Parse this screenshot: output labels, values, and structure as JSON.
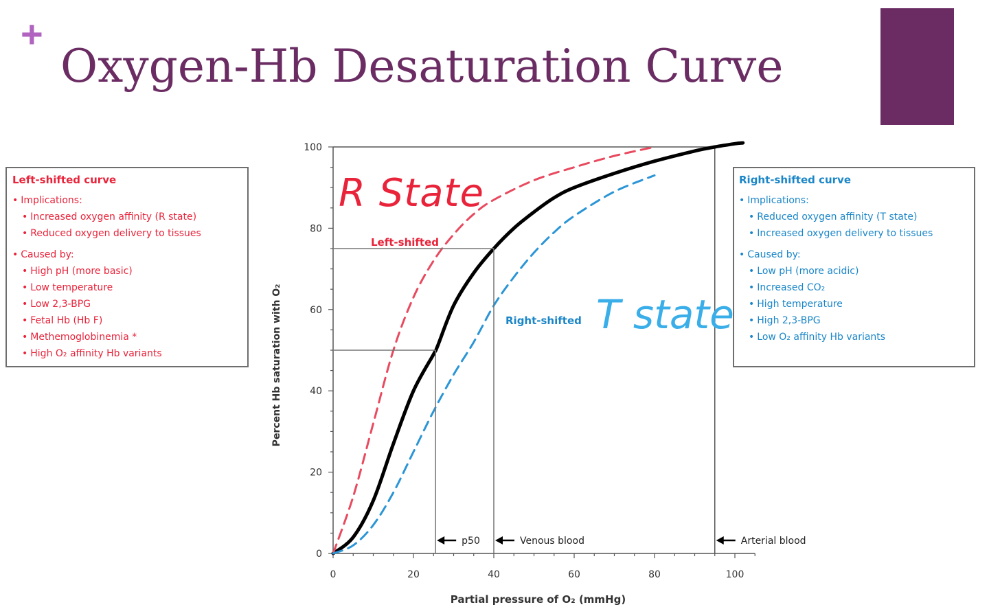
{
  "slide": {
    "plus": "+",
    "title": "Oxygen-Hb Desaturation Curve",
    "accent_color": "#6a2c63",
    "plus_color": "#b064c0"
  },
  "left_box": {
    "title": "Left-shifted curve",
    "color": "#e8233a",
    "items": [
      {
        "text": "Implications:",
        "level": 0
      },
      {
        "text": "Increased oxygen affinity (R state)",
        "level": 1
      },
      {
        "text": "Reduced oxygen delivery to tissues",
        "level": 1
      },
      {
        "text": "Caused by:",
        "level": 0
      },
      {
        "text": "High pH (more basic)",
        "level": 1
      },
      {
        "text": "Low temperature",
        "level": 1
      },
      {
        "text": "Low 2,3-BPG",
        "level": 1
      },
      {
        "text": "Fetal Hb (Hb F)",
        "level": 1
      },
      {
        "text": "Methemoglobinemia *",
        "level": 1
      },
      {
        "text": "High O₂ affinity Hb variants",
        "level": 1
      }
    ]
  },
  "right_box": {
    "title": "Right-shifted curve",
    "color": "#1a86c8",
    "items": [
      {
        "text": "Implications:",
        "level": 0
      },
      {
        "text": "Reduced oxygen affinity (T state)",
        "level": 1
      },
      {
        "text": "Increased oxygen delivery to tissues",
        "level": 1
      },
      {
        "text": "Caused by:",
        "level": 0
      },
      {
        "text": "Low pH (more acidic)",
        "level": 1
      },
      {
        "text": "Increased CO₂",
        "level": 1
      },
      {
        "text": "High temperature",
        "level": 1
      },
      {
        "text": "High 2,3-BPG",
        "level": 1
      },
      {
        "text": "Low O₂ affinity Hb variants",
        "level": 1
      }
    ]
  },
  "chart_data": {
    "type": "line",
    "xlabel": "Partial pressure of O₂ (mmHg)",
    "ylabel": "Percent Hb saturation with O₂",
    "xlim": [
      0,
      105
    ],
    "ylim": [
      0,
      100
    ],
    "xticks": [
      0,
      20,
      40,
      60,
      80,
      100
    ],
    "yticks": [
      0,
      20,
      40,
      60,
      80,
      100
    ],
    "grid": false,
    "series": [
      {
        "key": "normal",
        "color": "#000000",
        "style": "solid",
        "x": [
          0,
          5,
          10,
          15,
          20,
          25,
          26,
          30,
          35,
          40,
          45,
          50,
          55,
          60,
          70,
          80,
          90,
          95,
          100,
          102
        ],
        "y": [
          0,
          4,
          13,
          27,
          40,
          49,
          51,
          61,
          69,
          75,
          80,
          84,
          87.5,
          90,
          93.5,
          96.5,
          99,
          100,
          100.8,
          101
        ]
      },
      {
        "key": "left",
        "color": "#e84a5f",
        "style": "dashed",
        "x": [
          0,
          5,
          10,
          15,
          20,
          25,
          30,
          35,
          40,
          50,
          60,
          70,
          80
        ],
        "y": [
          0,
          14,
          32,
          50,
          63,
          72,
          78.5,
          83.5,
          87,
          91.8,
          95,
          97.8,
          100
        ]
      },
      {
        "key": "right",
        "color": "#2b95d6",
        "style": "dashed",
        "x": [
          0,
          5,
          10,
          15,
          20,
          25,
          30,
          35,
          40,
          45,
          50,
          55,
          60,
          70,
          80
        ],
        "y": [
          0,
          2,
          7,
          15,
          25,
          35,
          44,
          52,
          61,
          68,
          74,
          79,
          83,
          89,
          93
        ]
      }
    ],
    "series_labels": [
      {
        "text": "Left-shifted",
        "color": "#e8233a"
      },
      {
        "text": "Right-shifted",
        "color": "#1a86c8"
      }
    ],
    "reference_lines": [
      {
        "x": 25.5,
        "y": 50
      },
      {
        "x": 40,
        "y": 75
      }
    ],
    "arterial_x": 95,
    "markers": [
      {
        "x": 25.5,
        "label": "p50"
      },
      {
        "x": 40,
        "label": "Venous blood"
      },
      {
        "x": 95,
        "label": "Arterial blood"
      }
    ],
    "handwritten": [
      {
        "text": "R State",
        "color": "#e8233a"
      },
      {
        "text": "T state",
        "color": "#3aaee8"
      }
    ]
  }
}
